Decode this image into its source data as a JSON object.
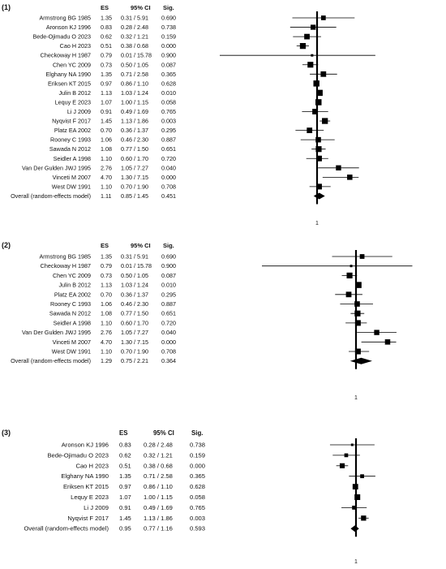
{
  "chart_data": [
    {
      "type": "forest",
      "panel_label": "(1)",
      "columns": [
        "ES",
        "95% CI",
        "Sig."
      ],
      "reference_value": 1,
      "reference_label": "1",
      "studies": [
        {
          "name": "Armstrong BG 1985",
          "es": 1.35,
          "ci_text": "0.31 / 5.91",
          "lo": 0.31,
          "hi": 5.91,
          "sig": "0.690"
        },
        {
          "name": "Aronson KJ 1996",
          "es": 0.83,
          "ci_text": "0.28 / 2.48",
          "lo": 0.28,
          "hi": 2.48,
          "sig": "0.738"
        },
        {
          "name": "Bede-Ojimadu O 2023",
          "es": 0.62,
          "ci_text": "0.32 / 1.21",
          "lo": 0.32,
          "hi": 1.21,
          "sig": "0.159"
        },
        {
          "name": "Cao H 2023",
          "es": 0.51,
          "ci_text": "0.38 / 0.68",
          "lo": 0.38,
          "hi": 0.68,
          "sig": "0.000"
        },
        {
          "name": "Checkoway H 1987",
          "es": 0.79,
          "ci_text": "0.01 / 15.78",
          "lo": 0.01,
          "hi": 15.78,
          "sig": "0.900"
        },
        {
          "name": "Chen YC 2009",
          "es": 0.73,
          "ci_text": "0.50 / 1.05",
          "lo": 0.5,
          "hi": 1.05,
          "sig": "0.087"
        },
        {
          "name": "Elghany NA 1990",
          "es": 1.35,
          "ci_text": "0.71 / 2.58",
          "lo": 0.71,
          "hi": 2.58,
          "sig": "0.365"
        },
        {
          "name": "Eriksen KT 2015",
          "es": 0.97,
          "ci_text": "0.86 / 1.10",
          "lo": 0.86,
          "hi": 1.1,
          "sig": "0.628"
        },
        {
          "name": "Julin B 2012",
          "es": 1.13,
          "ci_text": "1.03 / 1.24",
          "lo": 1.03,
          "hi": 1.24,
          "sig": "0.010"
        },
        {
          "name": "Lequy E 2023",
          "es": 1.07,
          "ci_text": "1.00 / 1.15",
          "lo": 1.0,
          "hi": 1.15,
          "sig": "0.058"
        },
        {
          "name": "Li J 2009",
          "es": 0.91,
          "ci_text": "0.49 / 1.69",
          "lo": 0.49,
          "hi": 1.69,
          "sig": "0.765"
        },
        {
          "name": "Nyqvist F 2017",
          "es": 1.45,
          "ci_text": "1.13 / 1.86",
          "lo": 1.13,
          "hi": 1.86,
          "sig": "0.003"
        },
        {
          "name": "Platz EA 2002",
          "es": 0.7,
          "ci_text": "0.36 / 1.37",
          "lo": 0.36,
          "hi": 1.37,
          "sig": "0.295"
        },
        {
          "name": "Rooney C 1993",
          "es": 1.06,
          "ci_text": "0.46 / 2.30",
          "lo": 0.46,
          "hi": 2.3,
          "sig": "0.887"
        },
        {
          "name": "Sawada N 2012",
          "es": 1.08,
          "ci_text": "0.77 / 1.50",
          "lo": 0.77,
          "hi": 1.5,
          "sig": "0.651"
        },
        {
          "name": "Seidler A 1998",
          "es": 1.1,
          "ci_text": "0.60 / 1.70",
          "lo": 0.6,
          "hi": 1.7,
          "sig": "0.720"
        },
        {
          "name": "Van Der Gulden JWJ 1995",
          "es": 2.76,
          "ci_text": "1.05 / 7.27",
          "lo": 1.05,
          "hi": 7.27,
          "sig": "0.040"
        },
        {
          "name": "Vinceti M 2007",
          "es": 4.7,
          "ci_text": "1.30 / 7.15",
          "lo": 1.3,
          "hi": 7.15,
          "sig": "0.000"
        },
        {
          "name": "West DW 1991",
          "es": 1.1,
          "ci_text": "0.70 / 1.90",
          "lo": 0.7,
          "hi": 1.9,
          "sig": "0.708"
        }
      ],
      "overall": {
        "name": "Overall (random-effects model)",
        "es": 1.11,
        "ci_text": "0.85 / 1.45",
        "lo": 0.85,
        "hi": 1.45,
        "sig": "0.451"
      }
    },
    {
      "type": "forest",
      "panel_label": "(2)",
      "columns": [
        "ES",
        "95% CI",
        "Sig."
      ],
      "reference_value": 1,
      "reference_label": "1",
      "studies": [
        {
          "name": "Armstrong BG 1985",
          "es": 1.35,
          "ci_text": "0.31 / 5.91",
          "lo": 0.31,
          "hi": 5.91,
          "sig": "0.690"
        },
        {
          "name": "Checkoway H 1987",
          "es": 0.79,
          "ci_text": "0.01 / 15.78",
          "lo": 0.01,
          "hi": 15.78,
          "sig": "0.900"
        },
        {
          "name": "Chen YC 2009",
          "es": 0.73,
          "ci_text": "0.50 / 1.05",
          "lo": 0.5,
          "hi": 1.05,
          "sig": "0.087"
        },
        {
          "name": "Julin B  2012",
          "es": 1.13,
          "ci_text": "1.03 / 1.24",
          "lo": 1.03,
          "hi": 1.24,
          "sig": "0.010"
        },
        {
          "name": "Platz EA 2002",
          "es": 0.7,
          "ci_text": "0.36 / 1.37",
          "lo": 0.36,
          "hi": 1.37,
          "sig": "0.295"
        },
        {
          "name": "Rooney C 1993",
          "es": 1.06,
          "ci_text": "0.46 / 2.30",
          "lo": 0.46,
          "hi": 2.3,
          "sig": "0.887"
        },
        {
          "name": "Sawada N 2012",
          "es": 1.08,
          "ci_text": "0.77 / 1.50",
          "lo": 0.77,
          "hi": 1.5,
          "sig": "0.651"
        },
        {
          "name": "Seidler A 1998",
          "es": 1.1,
          "ci_text": "0.60 / 1.70",
          "lo": 0.6,
          "hi": 1.7,
          "sig": "0.720"
        },
        {
          "name": "Van Der Gulden JWJ 1995",
          "es": 2.76,
          "ci_text": "1.05 / 7.27",
          "lo": 1.05,
          "hi": 7.27,
          "sig": "0.040"
        },
        {
          "name": "Vinceti M 2007",
          "es": 4.7,
          "ci_text": "1.30 / 7.15",
          "lo": 1.3,
          "hi": 7.15,
          "sig": "0.000"
        },
        {
          "name": "West DW 1991",
          "es": 1.1,
          "ci_text": "0.70 / 1.90",
          "lo": 0.7,
          "hi": 1.9,
          "sig": "0.708"
        }
      ],
      "overall": {
        "name": "Overall (random-effects model)",
        "es": 1.29,
        "ci_text": "0.75 / 2.21",
        "lo": 0.75,
        "hi": 2.21,
        "sig": "0.364"
      }
    },
    {
      "type": "forest",
      "panel_label": "(3)",
      "columns": [
        "ES",
        "95% CI",
        "Sig."
      ],
      "reference_value": 1,
      "reference_label": "1",
      "studies": [
        {
          "name": "Aronson KJ 1996",
          "es": 0.83,
          "ci_text": "0.28 / 2.48",
          "lo": 0.28,
          "hi": 2.48,
          "sig": "0.738"
        },
        {
          "name": "Bede-Ojimadu O 2023",
          "es": 0.62,
          "ci_text": "0.32 / 1.21",
          "lo": 0.32,
          "hi": 1.21,
          "sig": "0.159"
        },
        {
          "name": "Cao H 2023",
          "es": 0.51,
          "ci_text": "0.38 / 0.68",
          "lo": 0.38,
          "hi": 0.68,
          "sig": "0.000"
        },
        {
          "name": "Elghany NA 1990",
          "es": 1.35,
          "ci_text": "0.71 / 2.58",
          "lo": 0.71,
          "hi": 2.58,
          "sig": "0.365"
        },
        {
          "name": "Eriksen KT 2015",
          "es": 0.97,
          "ci_text": "0.86 / 1.10",
          "lo": 0.86,
          "hi": 1.1,
          "sig": "0.628"
        },
        {
          "name": "Lequy E 2023",
          "es": 1.07,
          "ci_text": "1.00 / 1.15",
          "lo": 1.0,
          "hi": 1.15,
          "sig": "0.058"
        },
        {
          "name": "Li J 2009",
          "es": 0.91,
          "ci_text": "0.49 / 1.69",
          "lo": 0.49,
          "hi": 1.69,
          "sig": "0.765"
        },
        {
          "name": "Nyqvist F 2017",
          "es": 1.45,
          "ci_text": "1.13 / 1.86",
          "lo": 1.13,
          "hi": 1.86,
          "sig": "0.003"
        }
      ],
      "overall": {
        "name": "Overall (random-effects model)",
        "es": 0.95,
        "ci_text": "0.77 / 1.16",
        "lo": 0.77,
        "hi": 1.16,
        "sig": "0.593"
      }
    }
  ]
}
